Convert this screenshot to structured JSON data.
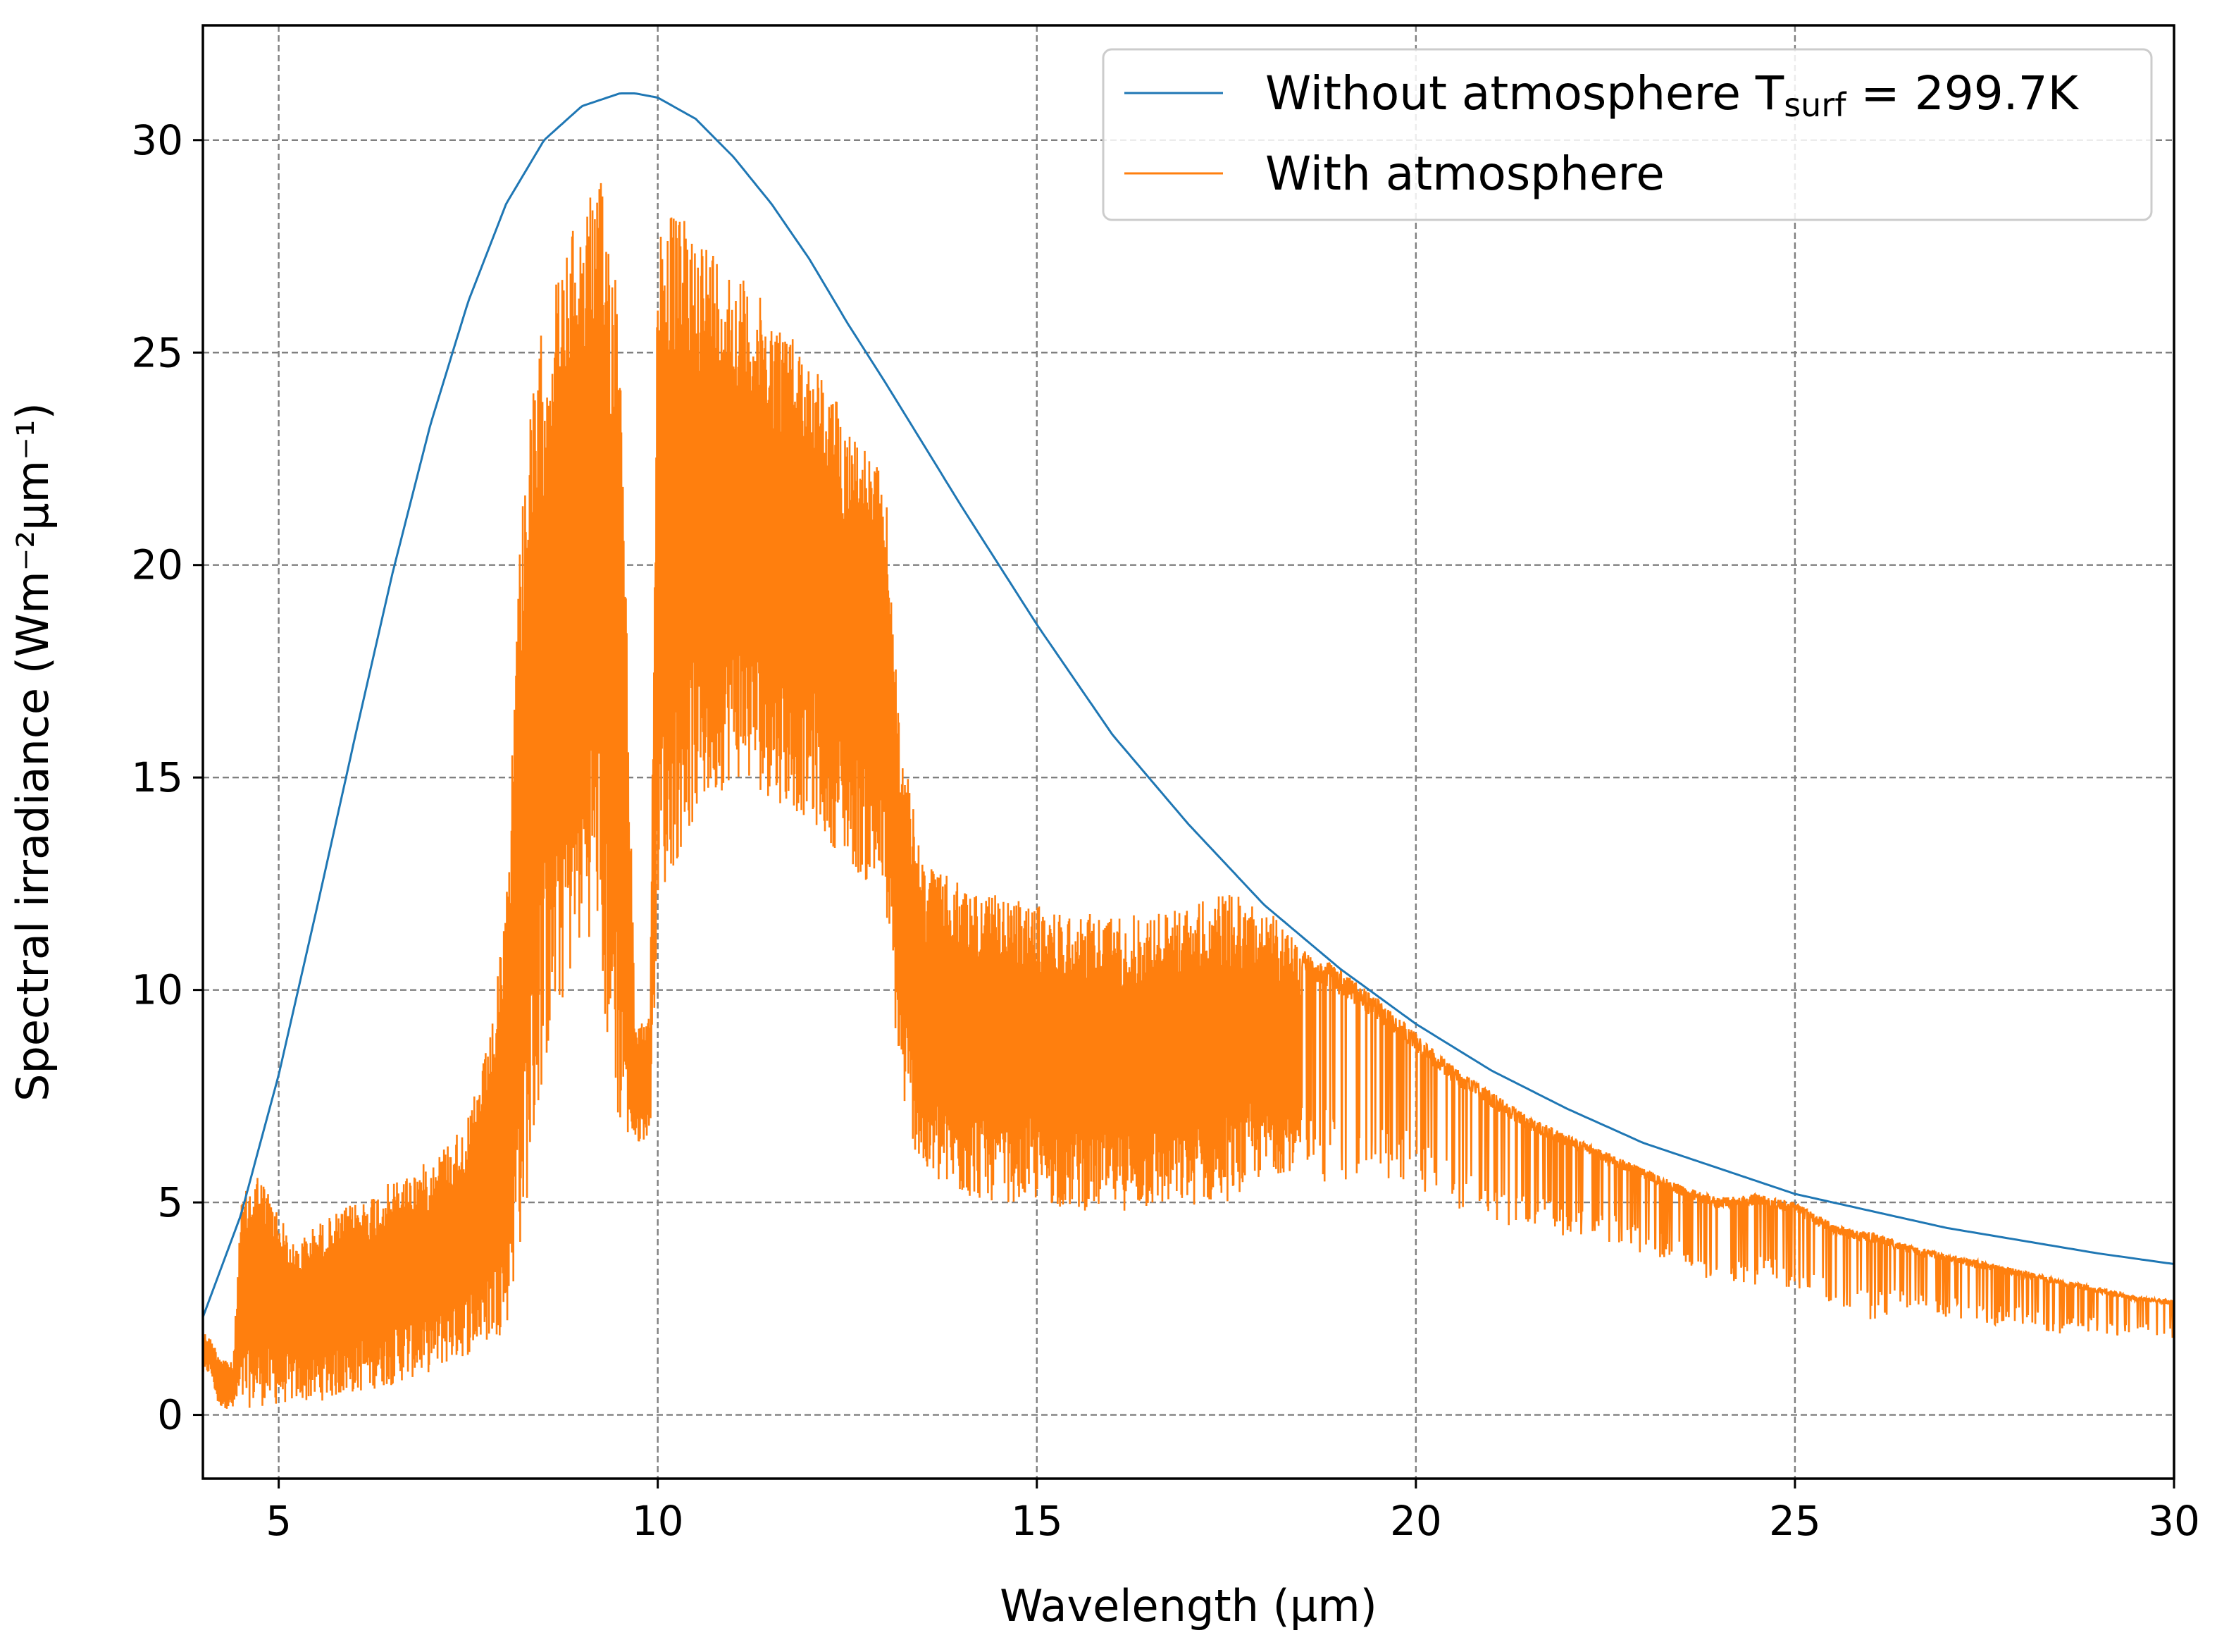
{
  "chart_data": {
    "type": "line",
    "title": "",
    "xlabel": "Wavelength (µm)",
    "ylabel": "Spectral irradiance (Wm⁻²µm⁻¹)",
    "xlim": [
      4,
      30
    ],
    "ylim": [
      -1.5,
      32.7
    ],
    "xticks": [
      5,
      10,
      15,
      20,
      25,
      30
    ],
    "yticks": [
      0,
      5,
      10,
      15,
      20,
      25,
      30
    ],
    "grid": true,
    "legend_position": "top-right",
    "series": [
      {
        "name": "Without atmosphere",
        "legend_label": {
          "main": "Without atmosphere T",
          "subscript": "surf",
          "suffix": " = 299.7K"
        },
        "color": "#1f77b4",
        "x": [
          4,
          4.5,
          5,
          5.5,
          6,
          6.5,
          7,
          7.5,
          8,
          8.5,
          9,
          9.5,
          9.7,
          10,
          10.5,
          11,
          11.5,
          12,
          12.5,
          13,
          14,
          15,
          16,
          17,
          18,
          19,
          20,
          21,
          22,
          23,
          24,
          25,
          26,
          27,
          28,
          29,
          30
        ],
        "values": [
          2.3,
          4.7,
          8.0,
          11.9,
          15.9,
          19.8,
          23.3,
          26.2,
          28.5,
          30.0,
          30.8,
          31.1,
          31.1,
          31.0,
          30.5,
          29.6,
          28.5,
          27.2,
          25.7,
          24.3,
          21.4,
          18.6,
          16.0,
          13.9,
          12.0,
          10.5,
          9.2,
          8.1,
          7.2,
          6.4,
          5.8,
          5.2,
          4.8,
          4.4,
          4.1,
          3.8,
          3.55
        ]
      },
      {
        "name": "With atmosphere",
        "legend_label": {
          "main": "With atmosphere"
        },
        "color": "#ff7f0e",
        "x": [
          4.0,
          4.1,
          4.2,
          4.4,
          4.5,
          4.7,
          4.9,
          5.2,
          5.5,
          6.0,
          6.5,
          7.0,
          7.5,
          7.8,
          8.0,
          8.2,
          8.5,
          8.8,
          9.0,
          9.2,
          9.3,
          9.5,
          9.7,
          9.9,
          10.0,
          10.5,
          11.0,
          11.5,
          12.0,
          12.5,
          13.0,
          13.2,
          13.5,
          14.0,
          14.5,
          15.0,
          15.5,
          16.0,
          16.5,
          17.0,
          17.5,
          18.0,
          18.5,
          19.0,
          19.5,
          20.0,
          20.5,
          21.0,
          21.5,
          22.0,
          22.5,
          23.0,
          23.5,
          24.0,
          24.5,
          25.0,
          25.5,
          26.0,
          26.5,
          27.0,
          27.5,
          28.0,
          28.5,
          29.0,
          29.5,
          30.0
        ],
        "lower": [
          0.9,
          1.0,
          0.2,
          0.1,
          0.1,
          0.2,
          0.2,
          0.3,
          0.3,
          0.5,
          0.7,
          1.0,
          1.4,
          1.7,
          2.0,
          4.0,
          8.0,
          10.0,
          11.0,
          11.5,
          9.0,
          6.5,
          6.3,
          6.6,
          12.0,
          14.0,
          15.0,
          14.5,
          14.0,
          13.0,
          12.0,
          7.5,
          5.5,
          5.1,
          5.0,
          5.0,
          4.8,
          4.8,
          4.8,
          4.9,
          5.0,
          5.6,
          5.8,
          5.2,
          5.5,
          5.3,
          4.8,
          4.6,
          4.3,
          4.2,
          4.0,
          3.7,
          3.4,
          3.1,
          3.0,
          2.9,
          2.5,
          2.2,
          2.4,
          2.3,
          2.1,
          2.1,
          1.9,
          1.9,
          1.8,
          1.8
        ],
        "upper": [
          2.0,
          1.8,
          1.5,
          1.2,
          5.0,
          5.8,
          5.2,
          4.0,
          4.5,
          5.0,
          5.5,
          6.0,
          7.0,
          9.0,
          12.0,
          22.0,
          26.0,
          27.5,
          28.5,
          29.0,
          29.0,
          27.0,
          9.0,
          9.5,
          28.5,
          28.0,
          27.0,
          26.0,
          25.0,
          23.5,
          22.0,
          16.0,
          13.0,
          12.5,
          12.2,
          12.0,
          11.8,
          11.8,
          11.8,
          12.0,
          12.3,
          12.0,
          11.0,
          10.5,
          9.8,
          9.0,
          8.2,
          7.6,
          7.0,
          6.6,
          6.2,
          5.8,
          5.4,
          5.1,
          5.2,
          5.0,
          4.5,
          4.3,
          4.0,
          3.8,
          3.6,
          3.4,
          3.2,
          3.0,
          2.8,
          2.7
        ]
      }
    ]
  }
}
